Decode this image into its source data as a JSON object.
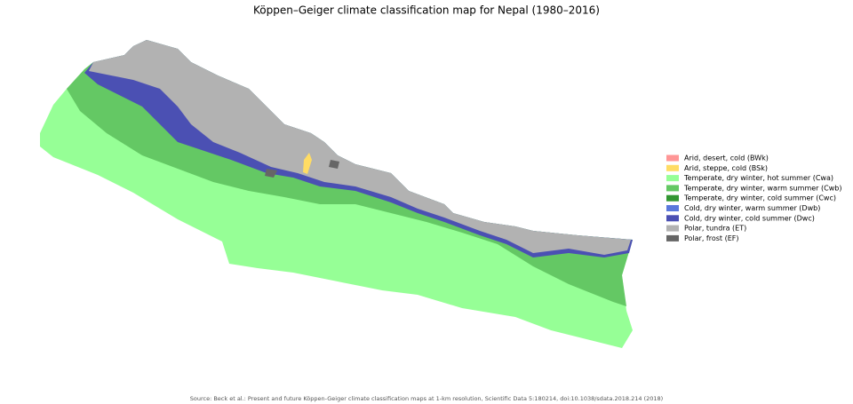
{
  "title": "Köppen–Geiger climate classification map for Nepal (1980–2016)",
  "legend": [
    {
      "label": "Arid, desert, cold (BWk)",
      "color": "#ff9696"
    },
    {
      "label": "Arid, steppe, cold (BSk)",
      "color": "#ffdc64"
    },
    {
      "label": "Temperate, dry winter, hot summer (Cwa)",
      "color": "#96ff96"
    },
    {
      "label": "Temperate, dry winter, warm summer (Cwb)",
      "color": "#64c864"
    },
    {
      "label": "Temperate, dry winter, cold summer (Cwc)",
      "color": "#329632"
    },
    {
      "label": "Cold, dry winter, warm summer (Dwb)",
      "color": "#5a78dc"
    },
    {
      "label": "Cold, dry winter, cold summer (Dwc)",
      "color": "#4b50b3"
    },
    {
      "label": "Polar, tundra (ET)",
      "color": "#b2b2b2"
    },
    {
      "label": "Polar, frost (EF)",
      "color": "#666666"
    }
  ],
  "source": "Source: Beck et al.: Present and future Köppen-Geiger climate classification maps at 1-km resolution, Scientific Data 5:180214, doi:10.1038/sdata.2018.214 (2018)"
}
